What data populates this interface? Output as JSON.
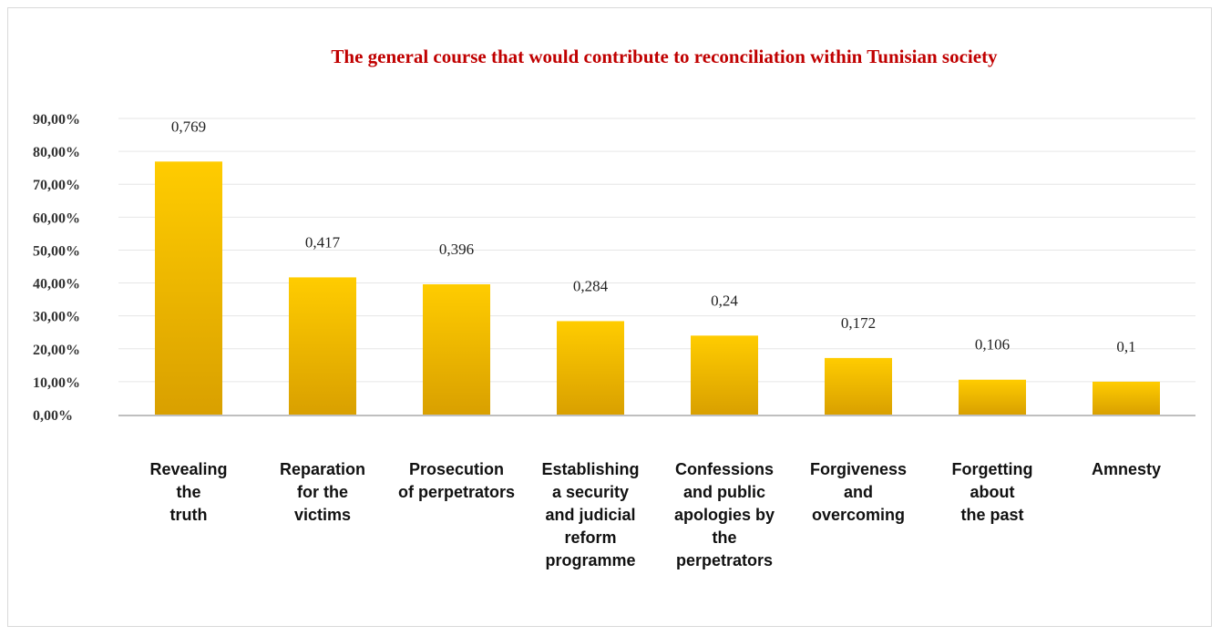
{
  "chart_data": {
    "type": "bar",
    "title": "The general course that would contribute to reconciliation within Tunisian society",
    "xlabel": "",
    "ylabel": "",
    "ylim": [
      0,
      0.9
    ],
    "yticks": [
      "0,00%",
      "10,00%",
      "20,00%",
      "30,00%",
      "40,00%",
      "50,00%",
      "60,00%",
      "70,00%",
      "80,00%",
      "90,00%"
    ],
    "grid": true,
    "legend": "none",
    "bar_color_top": "#ffcc00",
    "bar_color_bottom": "#d9a000",
    "categories": [
      [
        "Revealing",
        "the",
        "truth"
      ],
      [
        "Reparation",
        "for the",
        "victims"
      ],
      [
        "Prosecution",
        "of perpetrators"
      ],
      [
        "Establishing",
        "a security",
        "and judicial",
        "reform",
        "programme"
      ],
      [
        "Confessions",
        "and public",
        "apologies by",
        "the",
        "perpetrators"
      ],
      [
        "Forgiveness",
        "and",
        "overcoming"
      ],
      [
        "Forgetting",
        "about",
        "the past"
      ],
      [
        "Amnesty"
      ]
    ],
    "values": [
      0.769,
      0.417,
      0.396,
      0.284,
      0.24,
      0.172,
      0.106,
      0.1
    ],
    "data_labels": [
      "0,769",
      "0,417",
      "0,396",
      "0,284",
      "0,24",
      "0,172",
      "0,106",
      "0,1"
    ]
  }
}
